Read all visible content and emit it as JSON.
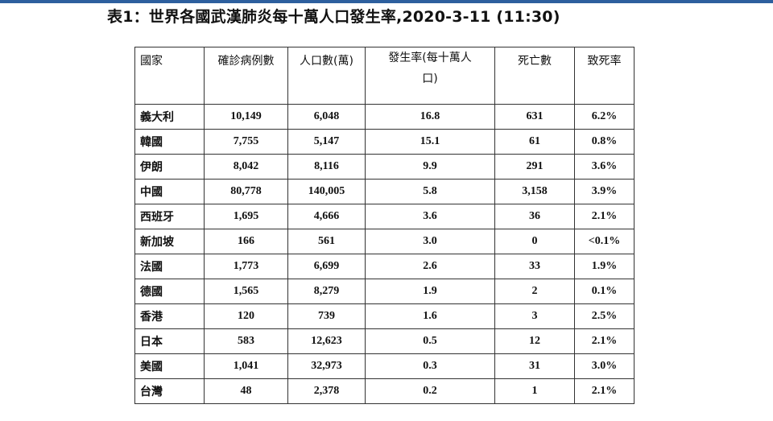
{
  "title": "表1：世界各國武漢肺炎每十萬人口發生率,2020-3-11 (11:30)",
  "table": {
    "headers": {
      "country": "國家",
      "cases": "確診病例數",
      "population": "人口數(萬)",
      "rate_line1": "發生率(每十萬人",
      "rate_line2": "口)",
      "deaths": "死亡數",
      "fatality": "致死率"
    },
    "rows": [
      {
        "country": "義大利",
        "cases": "10,149",
        "population": "6,048",
        "rate": "16.8",
        "deaths": "631",
        "fatality": "6.2%"
      },
      {
        "country": "韓國",
        "cases": "7,755",
        "population": "5,147",
        "rate": "15.1",
        "deaths": "61",
        "fatality": "0.8%"
      },
      {
        "country": "伊朗",
        "cases": "8,042",
        "population": "8,116",
        "rate": "9.9",
        "deaths": "291",
        "fatality": "3.6%"
      },
      {
        "country": "中國",
        "cases": "80,778",
        "population": "140,005",
        "rate": "5.8",
        "deaths": "3,158",
        "fatality": "3.9%"
      },
      {
        "country": "西班牙",
        "cases": "1,695",
        "population": "4,666",
        "rate": "3.6",
        "deaths": "36",
        "fatality": "2.1%"
      },
      {
        "country": "新加坡",
        "cases": "166",
        "population": "561",
        "rate": "3.0",
        "deaths": "0",
        "fatality": "<0.1%"
      },
      {
        "country": "法國",
        "cases": "1,773",
        "population": "6,699",
        "rate": "2.6",
        "deaths": "33",
        "fatality": "1.9%"
      },
      {
        "country": "德國",
        "cases": "1,565",
        "population": "8,279",
        "rate": "1.9",
        "deaths": "2",
        "fatality": "0.1%"
      },
      {
        "country": "香港",
        "cases": "120",
        "population": "739",
        "rate": "1.6",
        "deaths": "3",
        "fatality": "2.5%"
      },
      {
        "country": "日本",
        "cases": "583",
        "population": "12,623",
        "rate": "0.5",
        "deaths": "12",
        "fatality": "2.1%"
      },
      {
        "country": "美國",
        "cases": "1,041",
        "population": "32,973",
        "rate": "0.3",
        "deaths": "31",
        "fatality": "3.0%"
      },
      {
        "country": "台灣",
        "cases": "48",
        "population": "2,378",
        "rate": "0.2",
        "deaths": "1",
        "fatality": "2.1%"
      }
    ]
  }
}
